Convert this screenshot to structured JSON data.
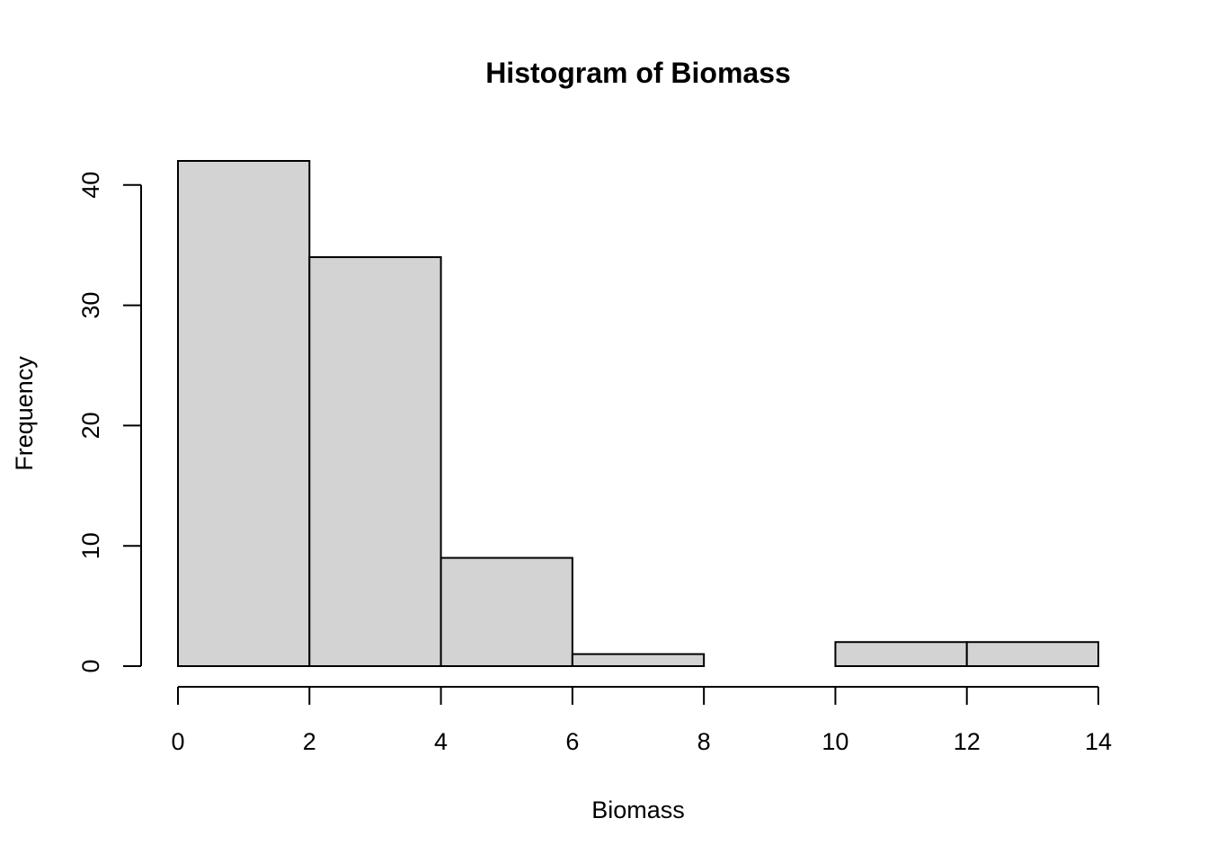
{
  "chart_data": {
    "type": "bar",
    "subtype": "histogram",
    "title": "Histogram of Biomass",
    "xlabel": "Biomass",
    "ylabel": "Frequency",
    "bins": [
      {
        "from": 0,
        "to": 2,
        "count": 42
      },
      {
        "from": 2,
        "to": 4,
        "count": 34
      },
      {
        "from": 4,
        "to": 6,
        "count": 9
      },
      {
        "from": 6,
        "to": 8,
        "count": 1
      },
      {
        "from": 8,
        "to": 10,
        "count": 0
      },
      {
        "from": 10,
        "to": 12,
        "count": 2
      },
      {
        "from": 12,
        "to": 14,
        "count": 2
      }
    ],
    "x_ticks": [
      0,
      2,
      4,
      6,
      8,
      10,
      12,
      14
    ],
    "y_ticks": [
      0,
      10,
      20,
      30,
      40
    ],
    "xlim": [
      0,
      14
    ],
    "ylim": [
      0,
      42
    ],
    "grid": false,
    "bar_color": "#d3d3d3",
    "edge_color": "#000000"
  }
}
